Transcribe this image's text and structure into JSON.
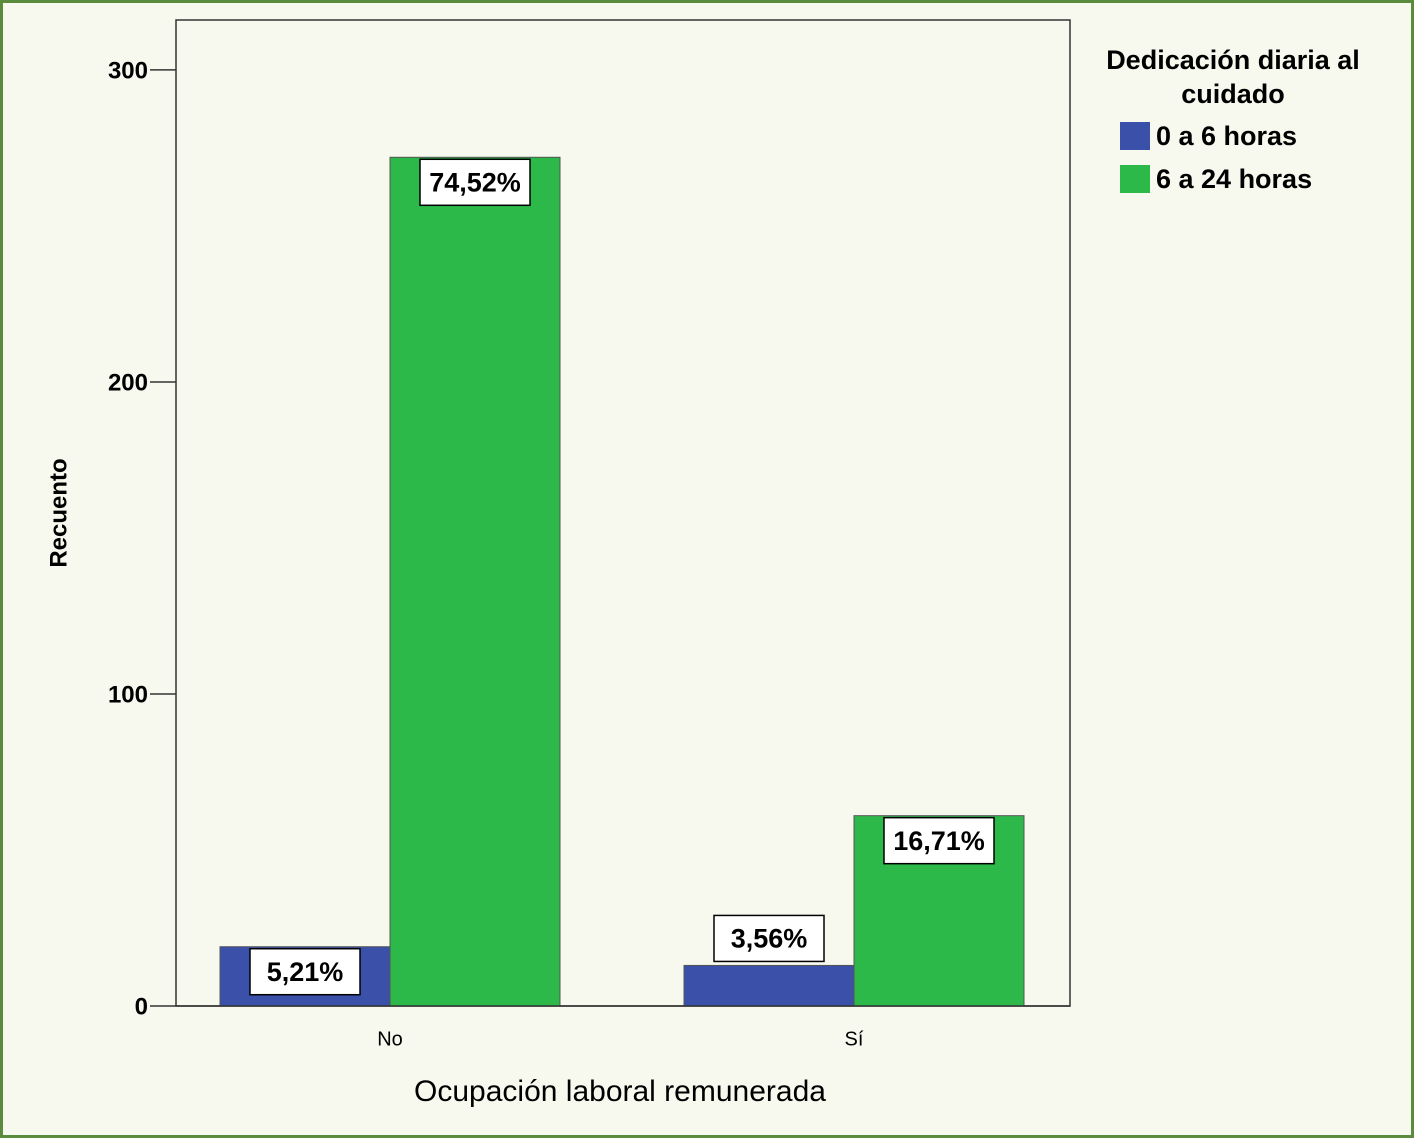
{
  "chart_data": {
    "type": "bar",
    "x_label": "Ocupación laboral remunerada",
    "y_label": "Recuento",
    "legend_title": [
      "Dedicación diaria al",
      "cuidado"
    ],
    "legend_position": "upper right",
    "categories": [
      "No",
      "Sí"
    ],
    "series": [
      {
        "name": "0 a 6 horas",
        "color": "#3b50a8",
        "values": [
          19,
          13
        ],
        "data_labels": [
          "5,21%",
          "3,56%"
        ]
      },
      {
        "name": "6 a 24 horas",
        "color": "#2db84a",
        "values": [
          272,
          61
        ],
        "data_labels": [
          "74,52%",
          "16,71%"
        ]
      }
    ],
    "ylim": [
      0,
      316
    ],
    "yticks": [
      0,
      100,
      200,
      300
    ]
  }
}
